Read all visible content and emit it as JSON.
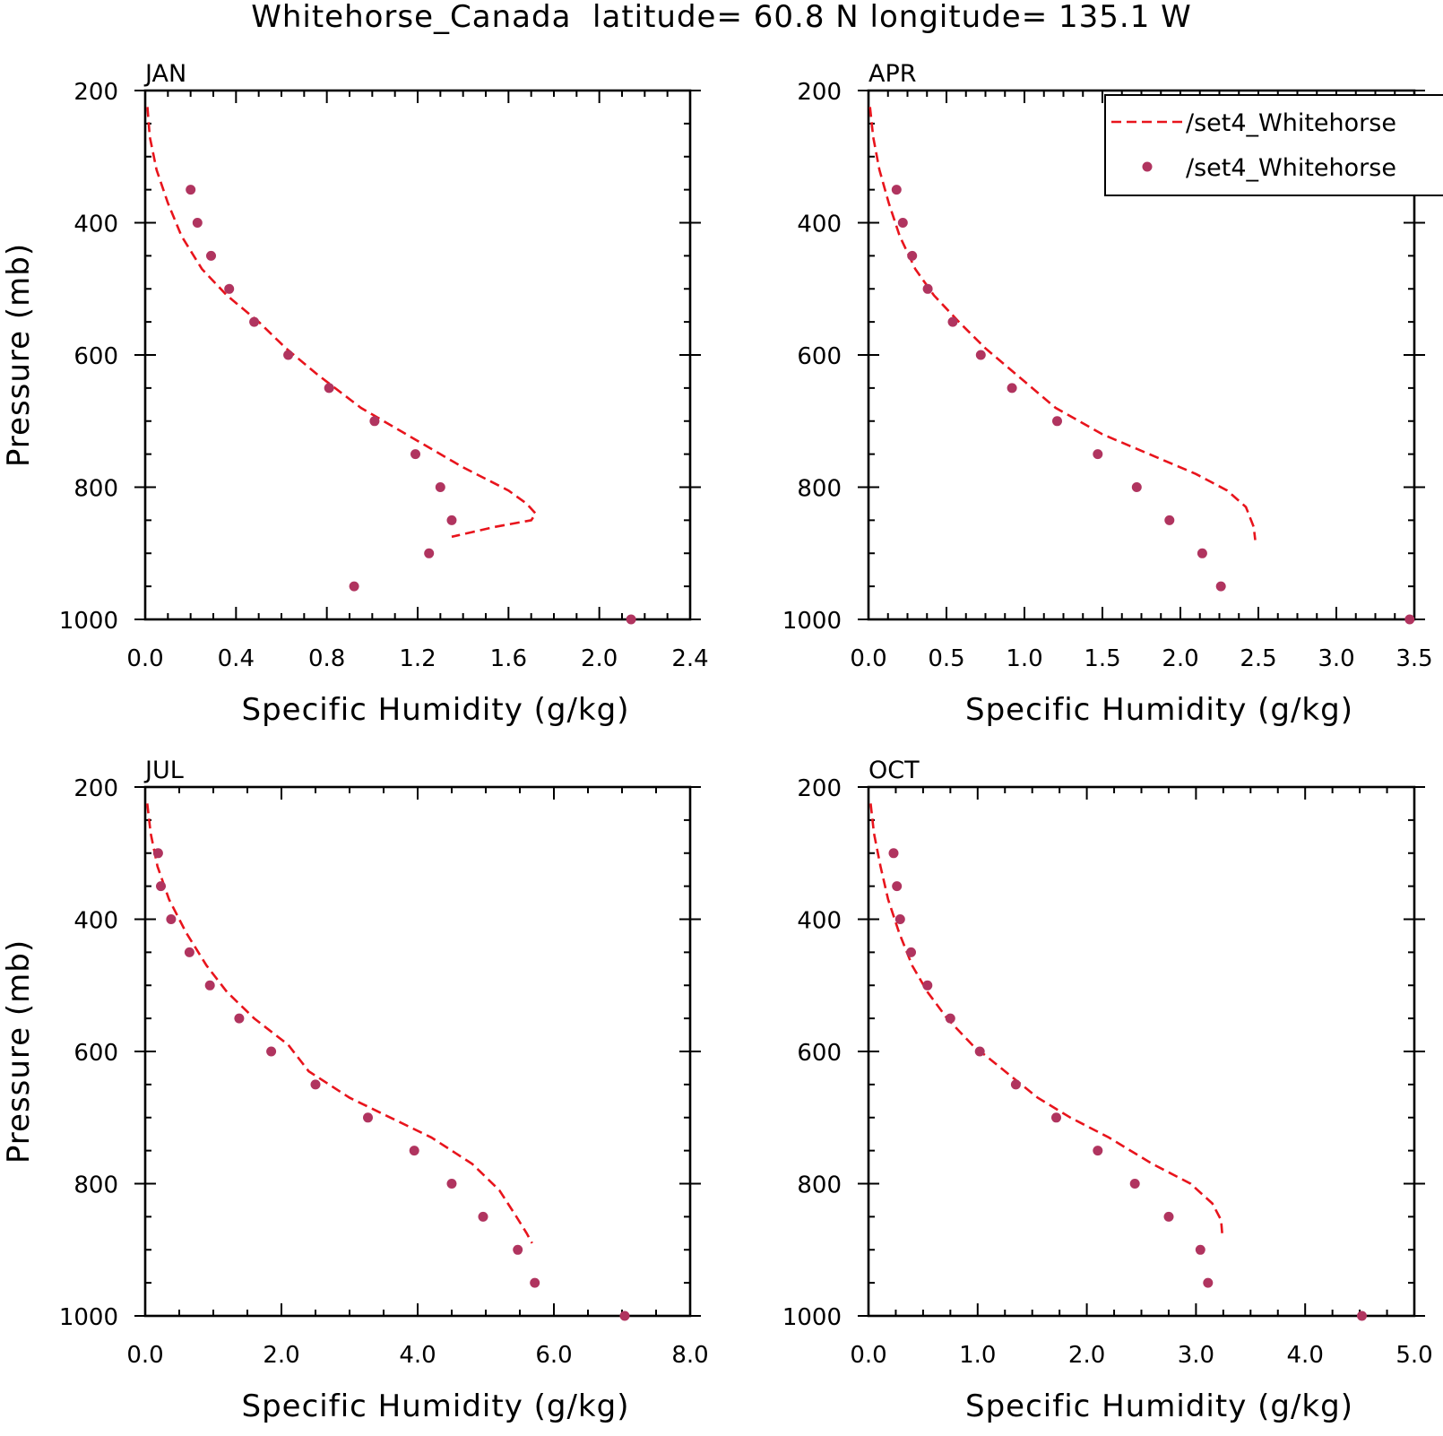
{
  "figure": {
    "title": "Whitehorse_Canada  latitude= 60.8 N longitude= 135.1 W"
  },
  "legend": {
    "entries": [
      {
        "label": "/set4_Whitehorse",
        "style": "dashed-line",
        "color": "#e8141c"
      },
      {
        "label": "/set4_Whitehorse",
        "style": "dot",
        "color": "#b0345f"
      }
    ]
  },
  "colors": {
    "line": "#e8141c",
    "dots": "#b0345f",
    "axes": "#000000"
  },
  "chart_data": [
    {
      "type": "line",
      "title": "JAN",
      "xlabel": "Specific Humidity (g/kg)",
      "ylabel": "Pressure (mb)",
      "xlim": [
        0,
        2.4
      ],
      "ylim": [
        200,
        1000
      ],
      "y_reversed": true,
      "xticks": [
        "0.0",
        "0.4",
        "0.8",
        "1.2",
        "1.6",
        "2.0",
        "2.4"
      ],
      "yticks": [
        "200",
        "400",
        "600",
        "800",
        "1000"
      ],
      "series": [
        {
          "style": "dashed-line",
          "x": [
            0.01,
            0.02,
            0.05,
            0.1,
            0.16,
            0.25,
            0.36,
            0.5,
            0.62,
            0.76,
            0.95,
            1.15,
            1.4,
            1.6,
            1.68,
            1.72,
            1.7,
            1.54,
            1.44,
            1.35
          ],
          "y": [
            225,
            270,
            320,
            370,
            420,
            470,
            510,
            550,
            590,
            630,
            680,
            720,
            770,
            805,
            825,
            840,
            850,
            860,
            868,
            875
          ]
        },
        {
          "style": "dots",
          "x": [
            0.2,
            0.23,
            0.29,
            0.37,
            0.48,
            0.63,
            0.81,
            1.01,
            1.19,
            1.3,
            1.35,
            1.25,
            0.92,
            2.14
          ],
          "y": [
            350,
            400,
            450,
            500,
            550,
            600,
            650,
            700,
            750,
            800,
            850,
            900,
            950,
            1000
          ]
        }
      ]
    },
    {
      "type": "line",
      "title": "APR",
      "xlabel": "Specific Humidity (g/kg)",
      "ylabel": "",
      "xlim": [
        0,
        3.5
      ],
      "ylim": [
        200,
        1000
      ],
      "y_reversed": true,
      "xticks": [
        "0.0",
        "0.5",
        "1.0",
        "1.5",
        "2.0",
        "2.5",
        "3.0",
        "3.5"
      ],
      "yticks": [
        "200",
        "400",
        "600",
        "800",
        "1000"
      ],
      "series": [
        {
          "style": "dashed-line",
          "x": [
            0.01,
            0.03,
            0.07,
            0.13,
            0.2,
            0.3,
            0.42,
            0.58,
            0.75,
            0.95,
            1.2,
            1.5,
            1.8,
            2.1,
            2.3,
            2.42,
            2.47,
            2.48
          ],
          "y": [
            225,
            270,
            320,
            370,
            420,
            470,
            510,
            550,
            590,
            630,
            680,
            720,
            750,
            780,
            805,
            830,
            860,
            880
          ]
        },
        {
          "style": "dots",
          "x": [
            0.18,
            0.22,
            0.28,
            0.38,
            0.54,
            0.72,
            0.92,
            1.21,
            1.47,
            1.72,
            1.93,
            2.14,
            2.26,
            3.47
          ],
          "y": [
            350,
            400,
            450,
            500,
            550,
            600,
            650,
            700,
            750,
            800,
            850,
            900,
            950,
            1000
          ]
        }
      ]
    },
    {
      "type": "line",
      "title": "JUL",
      "xlabel": "Specific Humidity (g/kg)",
      "ylabel": "Pressure (mb)",
      "xlim": [
        0,
        8
      ],
      "ylim": [
        200,
        1000
      ],
      "y_reversed": true,
      "xticks": [
        "0.0",
        "2.0",
        "4.0",
        "6.0",
        "8.0"
      ],
      "yticks": [
        "200",
        "400",
        "600",
        "800",
        "1000"
      ],
      "series": [
        {
          "style": "dashed-line",
          "x": [
            0.03,
            0.08,
            0.18,
            0.35,
            0.6,
            0.9,
            1.2,
            1.6,
            2.1,
            2.4,
            3.0,
            3.6,
            4.2,
            4.8,
            5.2,
            5.45,
            5.6,
            5.68
          ],
          "y": [
            225,
            270,
            320,
            370,
            420,
            470,
            510,
            550,
            590,
            630,
            670,
            700,
            730,
            770,
            810,
            850,
            875,
            890
          ]
        },
        {
          "style": "dots",
          "x": [
            0.19,
            0.23,
            0.38,
            0.65,
            0.95,
            1.38,
            1.85,
            2.5,
            3.27,
            3.95,
            4.5,
            4.96,
            5.47,
            5.72,
            7.04
          ],
          "y": [
            300,
            350,
            400,
            450,
            500,
            550,
            600,
            650,
            700,
            750,
            800,
            850,
            900,
            950,
            1000
          ]
        }
      ]
    },
    {
      "type": "line",
      "title": "OCT",
      "xlabel": "Specific Humidity (g/kg)",
      "ylabel": "",
      "xlim": [
        0,
        5
      ],
      "ylim": [
        200,
        1000
      ],
      "y_reversed": true,
      "xticks": [
        "0.0",
        "1.0",
        "2.0",
        "3.0",
        "4.0",
        "5.0"
      ],
      "yticks": [
        "200",
        "400",
        "600",
        "800",
        "1000"
      ],
      "series": [
        {
          "style": "dashed-line",
          "x": [
            0.02,
            0.05,
            0.11,
            0.18,
            0.28,
            0.4,
            0.54,
            0.72,
            0.95,
            1.25,
            1.55,
            1.85,
            2.2,
            2.6,
            2.95,
            3.15,
            3.23,
            3.24
          ],
          "y": [
            225,
            270,
            320,
            370,
            420,
            470,
            510,
            550,
            590,
            630,
            670,
            700,
            730,
            770,
            800,
            830,
            855,
            875
          ]
        },
        {
          "style": "dots",
          "x": [
            0.23,
            0.26,
            0.29,
            0.39,
            0.54,
            0.75,
            1.02,
            1.35,
            1.72,
            2.1,
            2.44,
            2.75,
            3.04,
            3.11,
            4.52
          ],
          "y": [
            300,
            350,
            400,
            450,
            500,
            550,
            600,
            650,
            700,
            750,
            800,
            850,
            900,
            950,
            1000
          ]
        }
      ]
    }
  ]
}
